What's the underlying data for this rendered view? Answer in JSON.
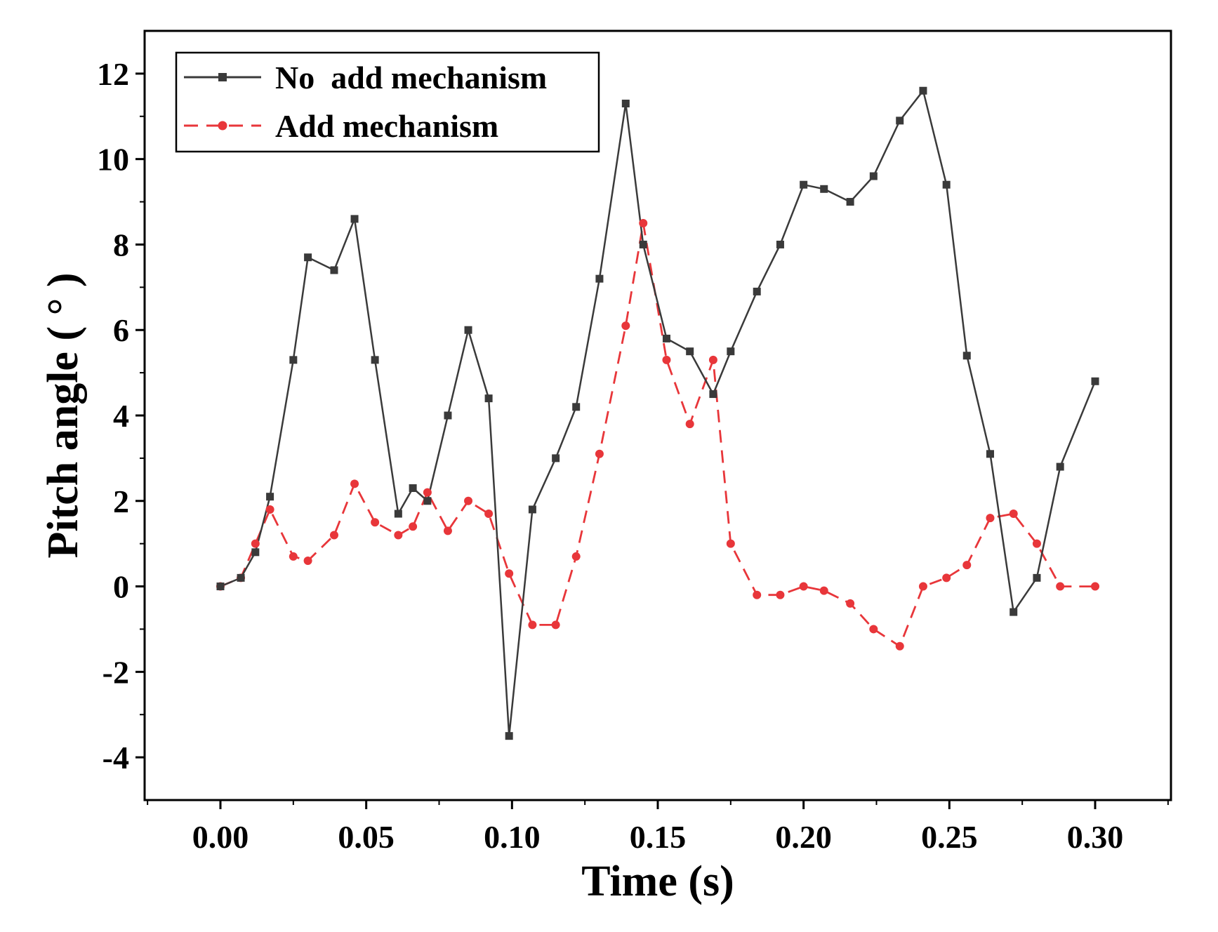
{
  "chart_data": {
    "type": "line",
    "title": "",
    "xlabel": "Time (s)",
    "ylabel": "Pitch angle ( ° )",
    "xlim": [
      -0.026,
      0.326
    ],
    "ylim": [
      -5.0,
      13.0
    ],
    "xticks": [
      0.0,
      0.05,
      0.1,
      0.15,
      0.2,
      0.25,
      0.3
    ],
    "xtick_labels": [
      "0.00",
      "0.05",
      "0.10",
      "0.15",
      "0.20",
      "0.25",
      "0.30"
    ],
    "yticks": [
      -4,
      -2,
      0,
      2,
      4,
      6,
      8,
      10,
      12
    ],
    "ytick_labels": [
      "-4",
      "-2",
      "0",
      "2",
      "4",
      "6",
      "8",
      "10",
      "12"
    ],
    "grid": false,
    "legend_position": "top-left",
    "series": [
      {
        "name": "No  add mechanism",
        "color": "#3a3a3a",
        "marker": "square",
        "line_style": "solid",
        "x": [
          0.0,
          0.007,
          0.012,
          0.017,
          0.025,
          0.03,
          0.039,
          0.046,
          0.053,
          0.061,
          0.066,
          0.071,
          0.078,
          0.085,
          0.092,
          0.099,
          0.107,
          0.115,
          0.122,
          0.13,
          0.139,
          0.145,
          0.153,
          0.161,
          0.169,
          0.175,
          0.184,
          0.192,
          0.2,
          0.207,
          0.216,
          0.224,
          0.233,
          0.241,
          0.249,
          0.256,
          0.264,
          0.272,
          0.28,
          0.288,
          0.3
        ],
        "y": [
          0.0,
          0.2,
          0.8,
          2.1,
          5.3,
          7.7,
          7.4,
          8.6,
          5.3,
          1.7,
          2.3,
          2.0,
          4.0,
          6.0,
          4.4,
          -3.5,
          1.8,
          3.0,
          4.2,
          7.2,
          11.3,
          8.0,
          5.8,
          5.5,
          4.5,
          5.5,
          6.9,
          8.0,
          9.4,
          9.3,
          9.0,
          9.6,
          10.9,
          11.6,
          9.4,
          5.4,
          3.1,
          -0.6,
          0.2,
          2.8,
          4.8
        ]
      },
      {
        "name": "Add mechanism",
        "color": "#e8363a",
        "marker": "circle",
        "line_style": "dashed",
        "x": [
          0.0,
          0.007,
          0.012,
          0.017,
          0.025,
          0.03,
          0.039,
          0.046,
          0.053,
          0.061,
          0.066,
          0.071,
          0.078,
          0.085,
          0.092,
          0.099,
          0.107,
          0.115,
          0.122,
          0.13,
          0.139,
          0.145,
          0.153,
          0.161,
          0.169,
          0.175,
          0.184,
          0.192,
          0.2,
          0.207,
          0.216,
          0.224,
          0.233,
          0.241,
          0.249,
          0.256,
          0.264,
          0.272,
          0.28,
          0.288,
          0.3
        ],
        "y": [
          0.0,
          0.2,
          1.0,
          1.8,
          0.7,
          0.6,
          1.2,
          2.4,
          1.5,
          1.2,
          1.4,
          2.2,
          1.3,
          2.0,
          1.7,
          0.3,
          -0.9,
          -0.9,
          0.7,
          3.1,
          6.1,
          8.5,
          5.3,
          3.8,
          5.3,
          1.0,
          -0.2,
          -0.2,
          0.0,
          -0.1,
          -0.4,
          -1.0,
          -1.4,
          0.0,
          0.2,
          0.5,
          1.6,
          1.7,
          1.0,
          0.0,
          0.0
        ]
      }
    ]
  }
}
